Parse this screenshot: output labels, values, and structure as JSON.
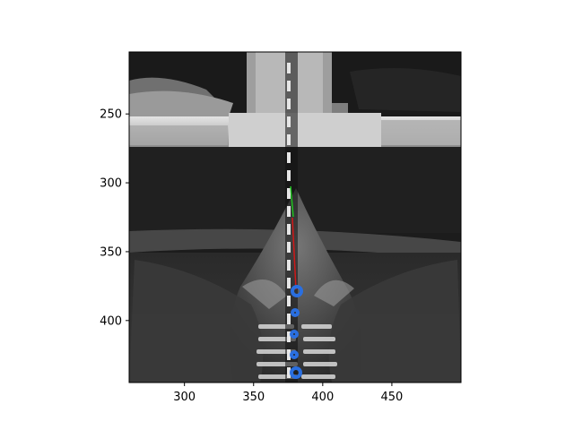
{
  "image": {
    "description_tags": [
      "grayscale-microscopy-frame",
      "tracking-overlay"
    ]
  },
  "axes": {
    "x_ticks": [
      {
        "value": 300,
        "label": "300"
      },
      {
        "value": 350,
        "label": "350"
      },
      {
        "value": 400,
        "label": "400"
      },
      {
        "value": 450,
        "label": "450"
      }
    ],
    "y_ticks": [
      {
        "value": 250,
        "label": "250"
      },
      {
        "value": 300,
        "label": "300"
      },
      {
        "value": 350,
        "label": "350"
      },
      {
        "value": 400,
        "label": "400"
      }
    ],
    "x_range": [
      260,
      500
    ],
    "y_range": [
      205,
      445
    ]
  },
  "overlay": {
    "dashed_line_color": "#e6e6e6",
    "red_line_color": "#d01818",
    "green_line_color": "#1fc01f",
    "marker_color": "#2a6fe0"
  }
}
